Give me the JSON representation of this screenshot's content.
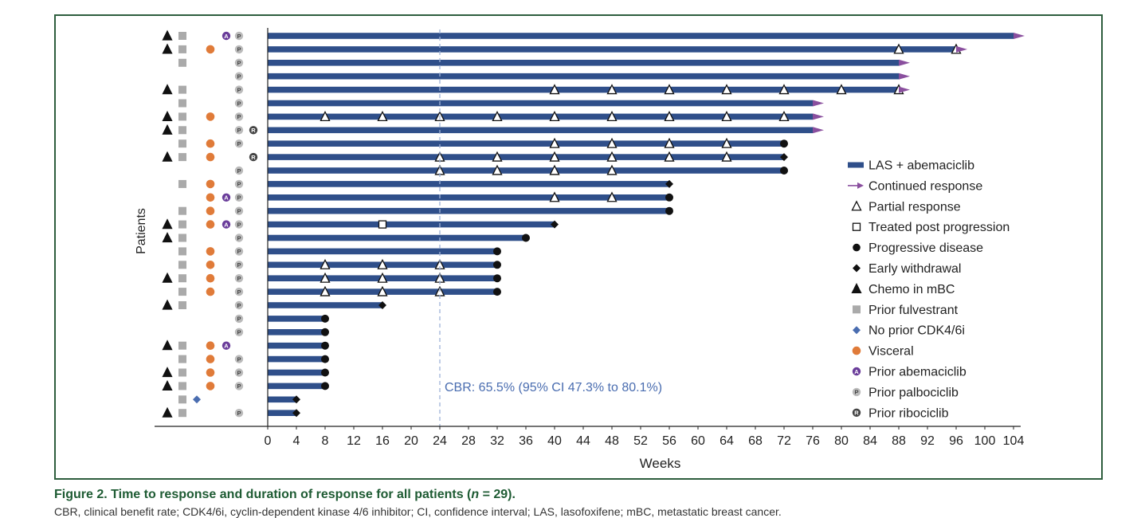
{
  "chart_data": {
    "type": "swimmer",
    "xlabel": "Weeks",
    "ylabel": "Patients",
    "xlim": [
      0,
      105
    ],
    "xticks": [
      0,
      4,
      8,
      12,
      16,
      20,
      24,
      28,
      32,
      36,
      40,
      44,
      48,
      52,
      56,
      60,
      64,
      68,
      72,
      76,
      80,
      84,
      88,
      92,
      96,
      100,
      104
    ],
    "reference_line": {
      "x": 24,
      "label": "CBR: 65.5% (95% CI 47.3% to 80.1%)"
    },
    "legend": [
      {
        "key": "bar",
        "label": "LAS + abemaciclib"
      },
      {
        "key": "continued",
        "label": "Continued response"
      },
      {
        "key": "partial",
        "label": "Partial response"
      },
      {
        "key": "treated",
        "label": "Treated post progression"
      },
      {
        "key": "progressive",
        "label": "Progressive disease"
      },
      {
        "key": "withdrawal",
        "label": "Early withdrawal"
      },
      {
        "key": "chemo",
        "label": "Chemo in mBC"
      },
      {
        "key": "fulv",
        "label": "Prior fulvestrant"
      },
      {
        "key": "nocdk",
        "label": "No prior CDK4/6i"
      },
      {
        "key": "visceral",
        "label": "Visceral"
      },
      {
        "key": "abema",
        "label": "Prior abemaciclib"
      },
      {
        "key": "palbo",
        "label": "Prior palbociclib"
      },
      {
        "key": "ribo",
        "label": "Prior ribociclib"
      }
    ],
    "prior_letters": {
      "abema": "A",
      "palbo": "P",
      "ribo": "R"
    },
    "colors": {
      "bar": "#2f4f8a",
      "arrow": "#8a4f9e",
      "visceral": "#e07b39",
      "abema": "#6a3d9a",
      "palbo": "#bbbbbb",
      "ribo": "#444444",
      "fulv": "#aaaaaa",
      "nocdk": "#4a6db0",
      "refline": "#9fb2d8",
      "annotation": "#4a6db0"
    },
    "patients": [
      {
        "end": 104,
        "outcome": "continued",
        "pr": [],
        "chemo": true,
        "fulv": true,
        "visceral": false,
        "abema": true,
        "palbo": true,
        "ribo": false,
        "nocdk": false
      },
      {
        "end": 96,
        "outcome": "continued",
        "pr": [
          88,
          96
        ],
        "chemo": true,
        "fulv": true,
        "visceral": true,
        "abema": false,
        "palbo": true,
        "ribo": false,
        "nocdk": false
      },
      {
        "end": 88,
        "outcome": "continued",
        "pr": [],
        "chemo": false,
        "fulv": true,
        "visceral": false,
        "abema": false,
        "palbo": true,
        "ribo": false,
        "nocdk": false
      },
      {
        "end": 88,
        "outcome": "continued",
        "pr": [],
        "chemo": false,
        "fulv": false,
        "visceral": false,
        "abema": false,
        "palbo": true,
        "ribo": false,
        "nocdk": false
      },
      {
        "end": 88,
        "outcome": "continued",
        "pr": [
          40,
          48,
          56,
          64,
          72,
          80,
          88
        ],
        "chemo": true,
        "fulv": true,
        "visceral": false,
        "abema": false,
        "palbo": true,
        "ribo": false,
        "nocdk": false
      },
      {
        "end": 76,
        "outcome": "continued",
        "pr": [],
        "chemo": false,
        "fulv": true,
        "visceral": false,
        "abema": false,
        "palbo": true,
        "ribo": false,
        "nocdk": false
      },
      {
        "end": 76,
        "outcome": "continued",
        "pr": [
          8,
          16,
          24,
          32,
          40,
          48,
          56,
          64,
          72
        ],
        "chemo": true,
        "fulv": true,
        "visceral": true,
        "abema": false,
        "palbo": true,
        "ribo": false,
        "nocdk": false
      },
      {
        "end": 76,
        "outcome": "continued",
        "pr": [],
        "chemo": true,
        "fulv": true,
        "visceral": false,
        "abema": false,
        "palbo": true,
        "ribo": true,
        "nocdk": false
      },
      {
        "end": 72,
        "outcome": "progressive",
        "pr": [
          40,
          48,
          56,
          64
        ],
        "chemo": false,
        "fulv": true,
        "visceral": true,
        "abema": false,
        "palbo": true,
        "ribo": false,
        "nocdk": false
      },
      {
        "end": 72,
        "outcome": "withdrawal",
        "pr": [
          24,
          32,
          40,
          48,
          56,
          64
        ],
        "chemo": true,
        "fulv": true,
        "visceral": true,
        "abema": false,
        "palbo": false,
        "ribo": true,
        "nocdk": false
      },
      {
        "end": 72,
        "outcome": "progressive",
        "pr": [
          24,
          32,
          40,
          48
        ],
        "chemo": false,
        "fulv": false,
        "visceral": false,
        "abema": false,
        "palbo": true,
        "ribo": false,
        "nocdk": false
      },
      {
        "end": 56,
        "outcome": "withdrawal",
        "pr": [],
        "chemo": false,
        "fulv": true,
        "visceral": true,
        "abema": false,
        "palbo": true,
        "ribo": false,
        "nocdk": false
      },
      {
        "end": 56,
        "outcome": "progressive",
        "pr": [
          40,
          48
        ],
        "chemo": false,
        "fulv": false,
        "visceral": true,
        "abema": true,
        "palbo": true,
        "ribo": false,
        "nocdk": false
      },
      {
        "end": 56,
        "outcome": "progressive",
        "pr": [],
        "chemo": false,
        "fulv": true,
        "visceral": true,
        "abema": false,
        "palbo": true,
        "ribo": false,
        "nocdk": false
      },
      {
        "end": 40,
        "outcome": "withdrawal",
        "pr": [],
        "treated": 16,
        "chemo": true,
        "fulv": true,
        "visceral": true,
        "abema": true,
        "palbo": true,
        "ribo": false,
        "nocdk": false
      },
      {
        "end": 36,
        "outcome": "progressive",
        "pr": [],
        "chemo": true,
        "fulv": true,
        "visceral": false,
        "abema": false,
        "palbo": true,
        "ribo": false,
        "nocdk": false
      },
      {
        "end": 32,
        "outcome": "progressive",
        "pr": [],
        "chemo": false,
        "fulv": true,
        "visceral": true,
        "abema": false,
        "palbo": true,
        "ribo": false,
        "nocdk": false
      },
      {
        "end": 32,
        "outcome": "progressive",
        "pr": [
          8,
          16,
          24
        ],
        "chemo": false,
        "fulv": true,
        "visceral": true,
        "abema": false,
        "palbo": true,
        "ribo": false,
        "nocdk": false
      },
      {
        "end": 32,
        "outcome": "progressive",
        "pr": [
          8,
          16,
          24
        ],
        "chemo": true,
        "fulv": true,
        "visceral": true,
        "abema": false,
        "palbo": true,
        "ribo": false,
        "nocdk": false
      },
      {
        "end": 32,
        "outcome": "progressive",
        "pr": [
          8,
          16,
          24
        ],
        "chemo": false,
        "fulv": true,
        "visceral": true,
        "abema": false,
        "palbo": true,
        "ribo": false,
        "nocdk": false
      },
      {
        "end": 16,
        "outcome": "withdrawal",
        "pr": [],
        "chemo": true,
        "fulv": true,
        "visceral": false,
        "abema": false,
        "palbo": true,
        "ribo": false,
        "nocdk": false
      },
      {
        "end": 8,
        "outcome": "progressive",
        "pr": [],
        "chemo": false,
        "fulv": false,
        "visceral": false,
        "abema": false,
        "palbo": true,
        "ribo": false,
        "nocdk": false
      },
      {
        "end": 8,
        "outcome": "progressive",
        "pr": [],
        "chemo": false,
        "fulv": false,
        "visceral": false,
        "abema": false,
        "palbo": true,
        "ribo": false,
        "nocdk": false
      },
      {
        "end": 8,
        "outcome": "progressive",
        "pr": [],
        "chemo": true,
        "fulv": true,
        "visceral": true,
        "abema": true,
        "palbo": false,
        "ribo": false,
        "nocdk": false
      },
      {
        "end": 8,
        "outcome": "progressive",
        "pr": [],
        "chemo": false,
        "fulv": true,
        "visceral": true,
        "abema": false,
        "palbo": true,
        "ribo": false,
        "nocdk": false
      },
      {
        "end": 8,
        "outcome": "progressive",
        "pr": [],
        "chemo": true,
        "fulv": true,
        "visceral": true,
        "abema": false,
        "palbo": true,
        "ribo": false,
        "nocdk": false
      },
      {
        "end": 8,
        "outcome": "progressive",
        "pr": [],
        "chemo": true,
        "fulv": true,
        "visceral": true,
        "abema": false,
        "palbo": true,
        "ribo": false,
        "nocdk": false
      },
      {
        "end": 4,
        "outcome": "withdrawal",
        "pr": [],
        "chemo": false,
        "fulv": true,
        "visceral": false,
        "abema": false,
        "palbo": false,
        "ribo": false,
        "nocdk": true
      },
      {
        "end": 4,
        "outcome": "withdrawal",
        "pr": [],
        "chemo": true,
        "fulv": true,
        "visceral": false,
        "abema": false,
        "palbo": true,
        "ribo": false,
        "nocdk": false
      }
    ]
  },
  "caption": {
    "label": "Figure 2.",
    "title_pre": "Time to response and duration of response for all patients (",
    "n_symbol": "n",
    "title_post": " = 29).",
    "subtitle": "CBR, clinical benefit rate; CDK4/6i, cyclin-dependent kinase 4/6 inhibitor; CI, confidence interval; LAS, lasofoxifene; mBC, metastatic breast cancer."
  }
}
